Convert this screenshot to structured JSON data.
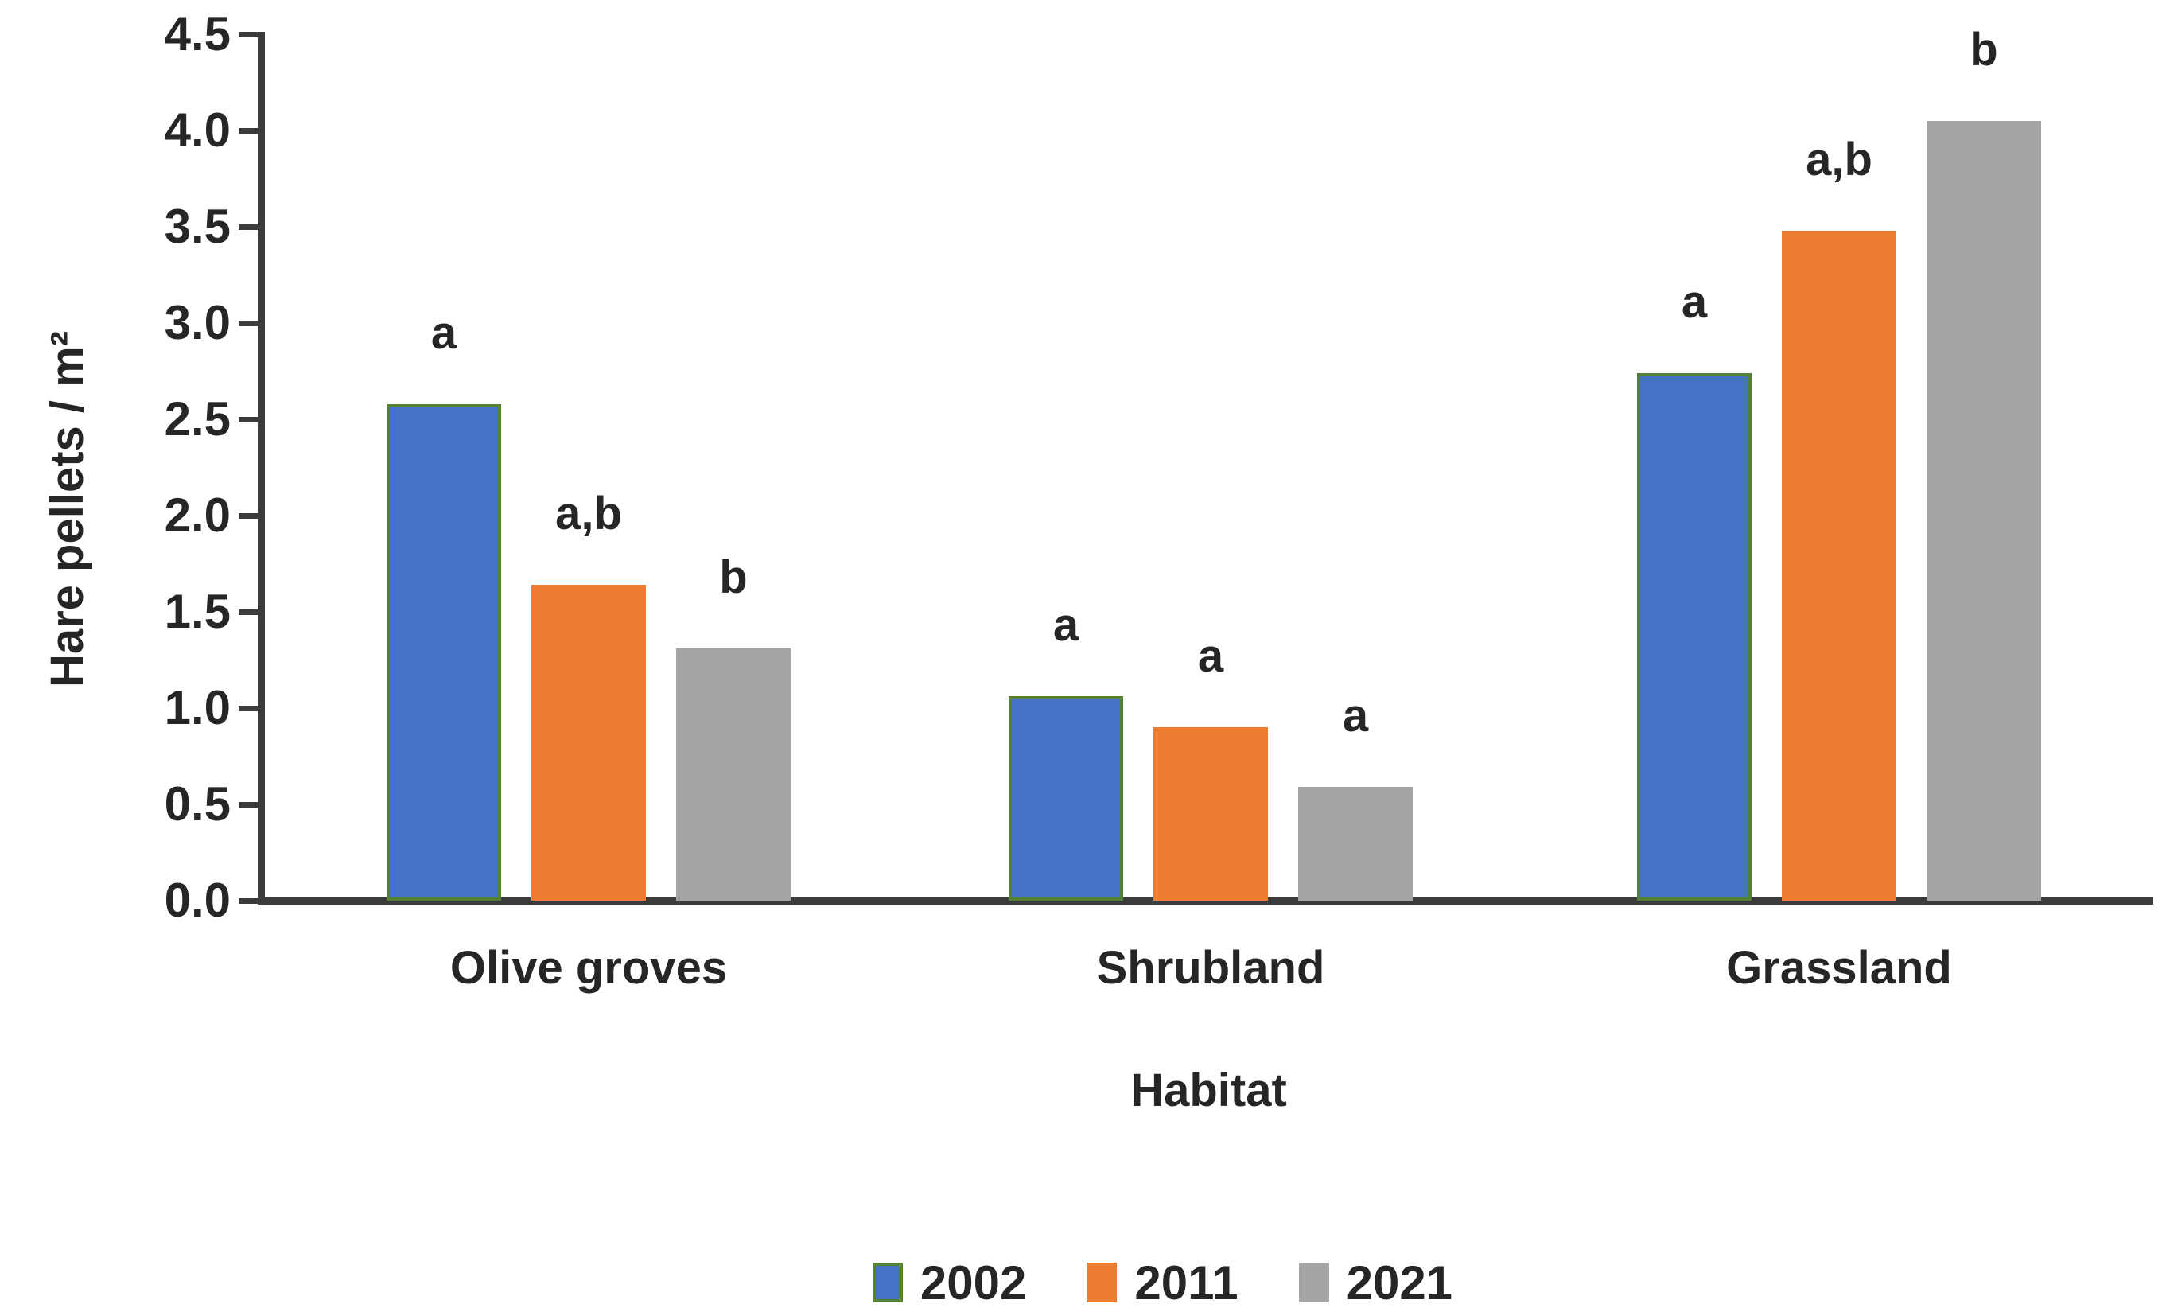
{
  "figure": {
    "background": "#ffffff",
    "text_color": "#262626",
    "axis_color": "#3b3b3b"
  },
  "chart_data": {
    "type": "bar",
    "title": "",
    "xlabel": "Habitat",
    "ylabel": "Hare pellets / m²",
    "categories": [
      "Olive groves",
      "Shrubland",
      "Grassland"
    ],
    "series": [
      {
        "name": "2002",
        "color": "#4472C4",
        "border_color": "#548235",
        "values": [
          2.58,
          1.06,
          2.74
        ],
        "sig_letters": [
          "a",
          "a",
          "a"
        ]
      },
      {
        "name": "2011",
        "color": "#ED7D31",
        "border_color": null,
        "values": [
          1.64,
          0.9,
          3.48
        ],
        "sig_letters": [
          "a,b",
          "a",
          "a,b"
        ]
      },
      {
        "name": "2021",
        "color": "#A5A5A5",
        "border_color": null,
        "values": [
          1.31,
          0.59,
          4.05
        ],
        "sig_letters": [
          "b",
          "a",
          "b"
        ]
      }
    ],
    "ylim": [
      0,
      4.5
    ],
    "ytick_step": 0.5,
    "ytick_labels": [
      "0.0",
      "0.5",
      "1.0",
      "1.5",
      "2.0",
      "2.5",
      "3.0",
      "3.5",
      "4.0",
      "4.5"
    ],
    "grid": false,
    "legend_position": "bottom",
    "legend": [
      "2002",
      "2011",
      "2021"
    ]
  }
}
